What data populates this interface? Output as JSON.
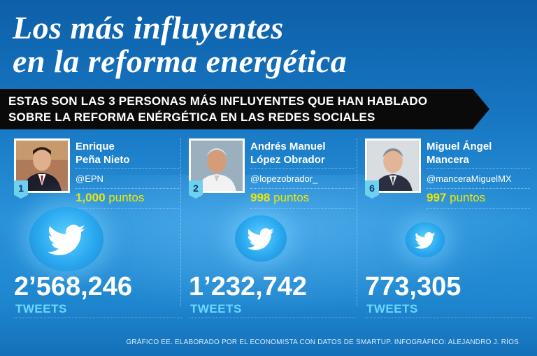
{
  "title": {
    "line1": "Los más influyentes",
    "line2": "en la reforma energética"
  },
  "banner": {
    "line1": "ESTAS SON LAS 3 PERSONAS MÁS INFLUYENTES QUE HAN HABLADO",
    "line2": "SOBRE LA REFORMA ENÉRGÉTICA EN LAS REDES SOCIALES"
  },
  "people": [
    {
      "rank": "1",
      "name_line1": "Enrique",
      "name_line2": "Peña Nieto",
      "handle": "@EPN",
      "points_value": "1,000",
      "points_unit": "puntos",
      "tweets": "2’568,246",
      "tweets_label": "TWEETS"
    },
    {
      "rank": "2",
      "name_line1": "Andrés Manuel",
      "name_line2": "López Obrador",
      "handle": "@lopezobrador_",
      "points_value": "998",
      "points_unit": "puntos",
      "tweets": "1’232,742",
      "tweets_label": "TWEETS"
    },
    {
      "rank": "6",
      "name_line1": "Miguel Ángel",
      "name_line2": "Mancera",
      "handle": "@manceraMiguelMX",
      "points_value": "997",
      "points_unit": "puntos",
      "tweets": "773,305",
      "tweets_label": "TWEETS"
    }
  ],
  "footer": "GRÁFICO EE. ELABORADO POR EL ECONOMISTA CON DATOS DE SMARTUP. INFOGRÁFICO: ALEJANDRO J. RÍOS",
  "colors": {
    "points": "#f2e800",
    "tweets_label": "#6cd6ff",
    "rank_badge": "#6fd0f0"
  },
  "icons": [
    "twitter-bird-icon"
  ]
}
